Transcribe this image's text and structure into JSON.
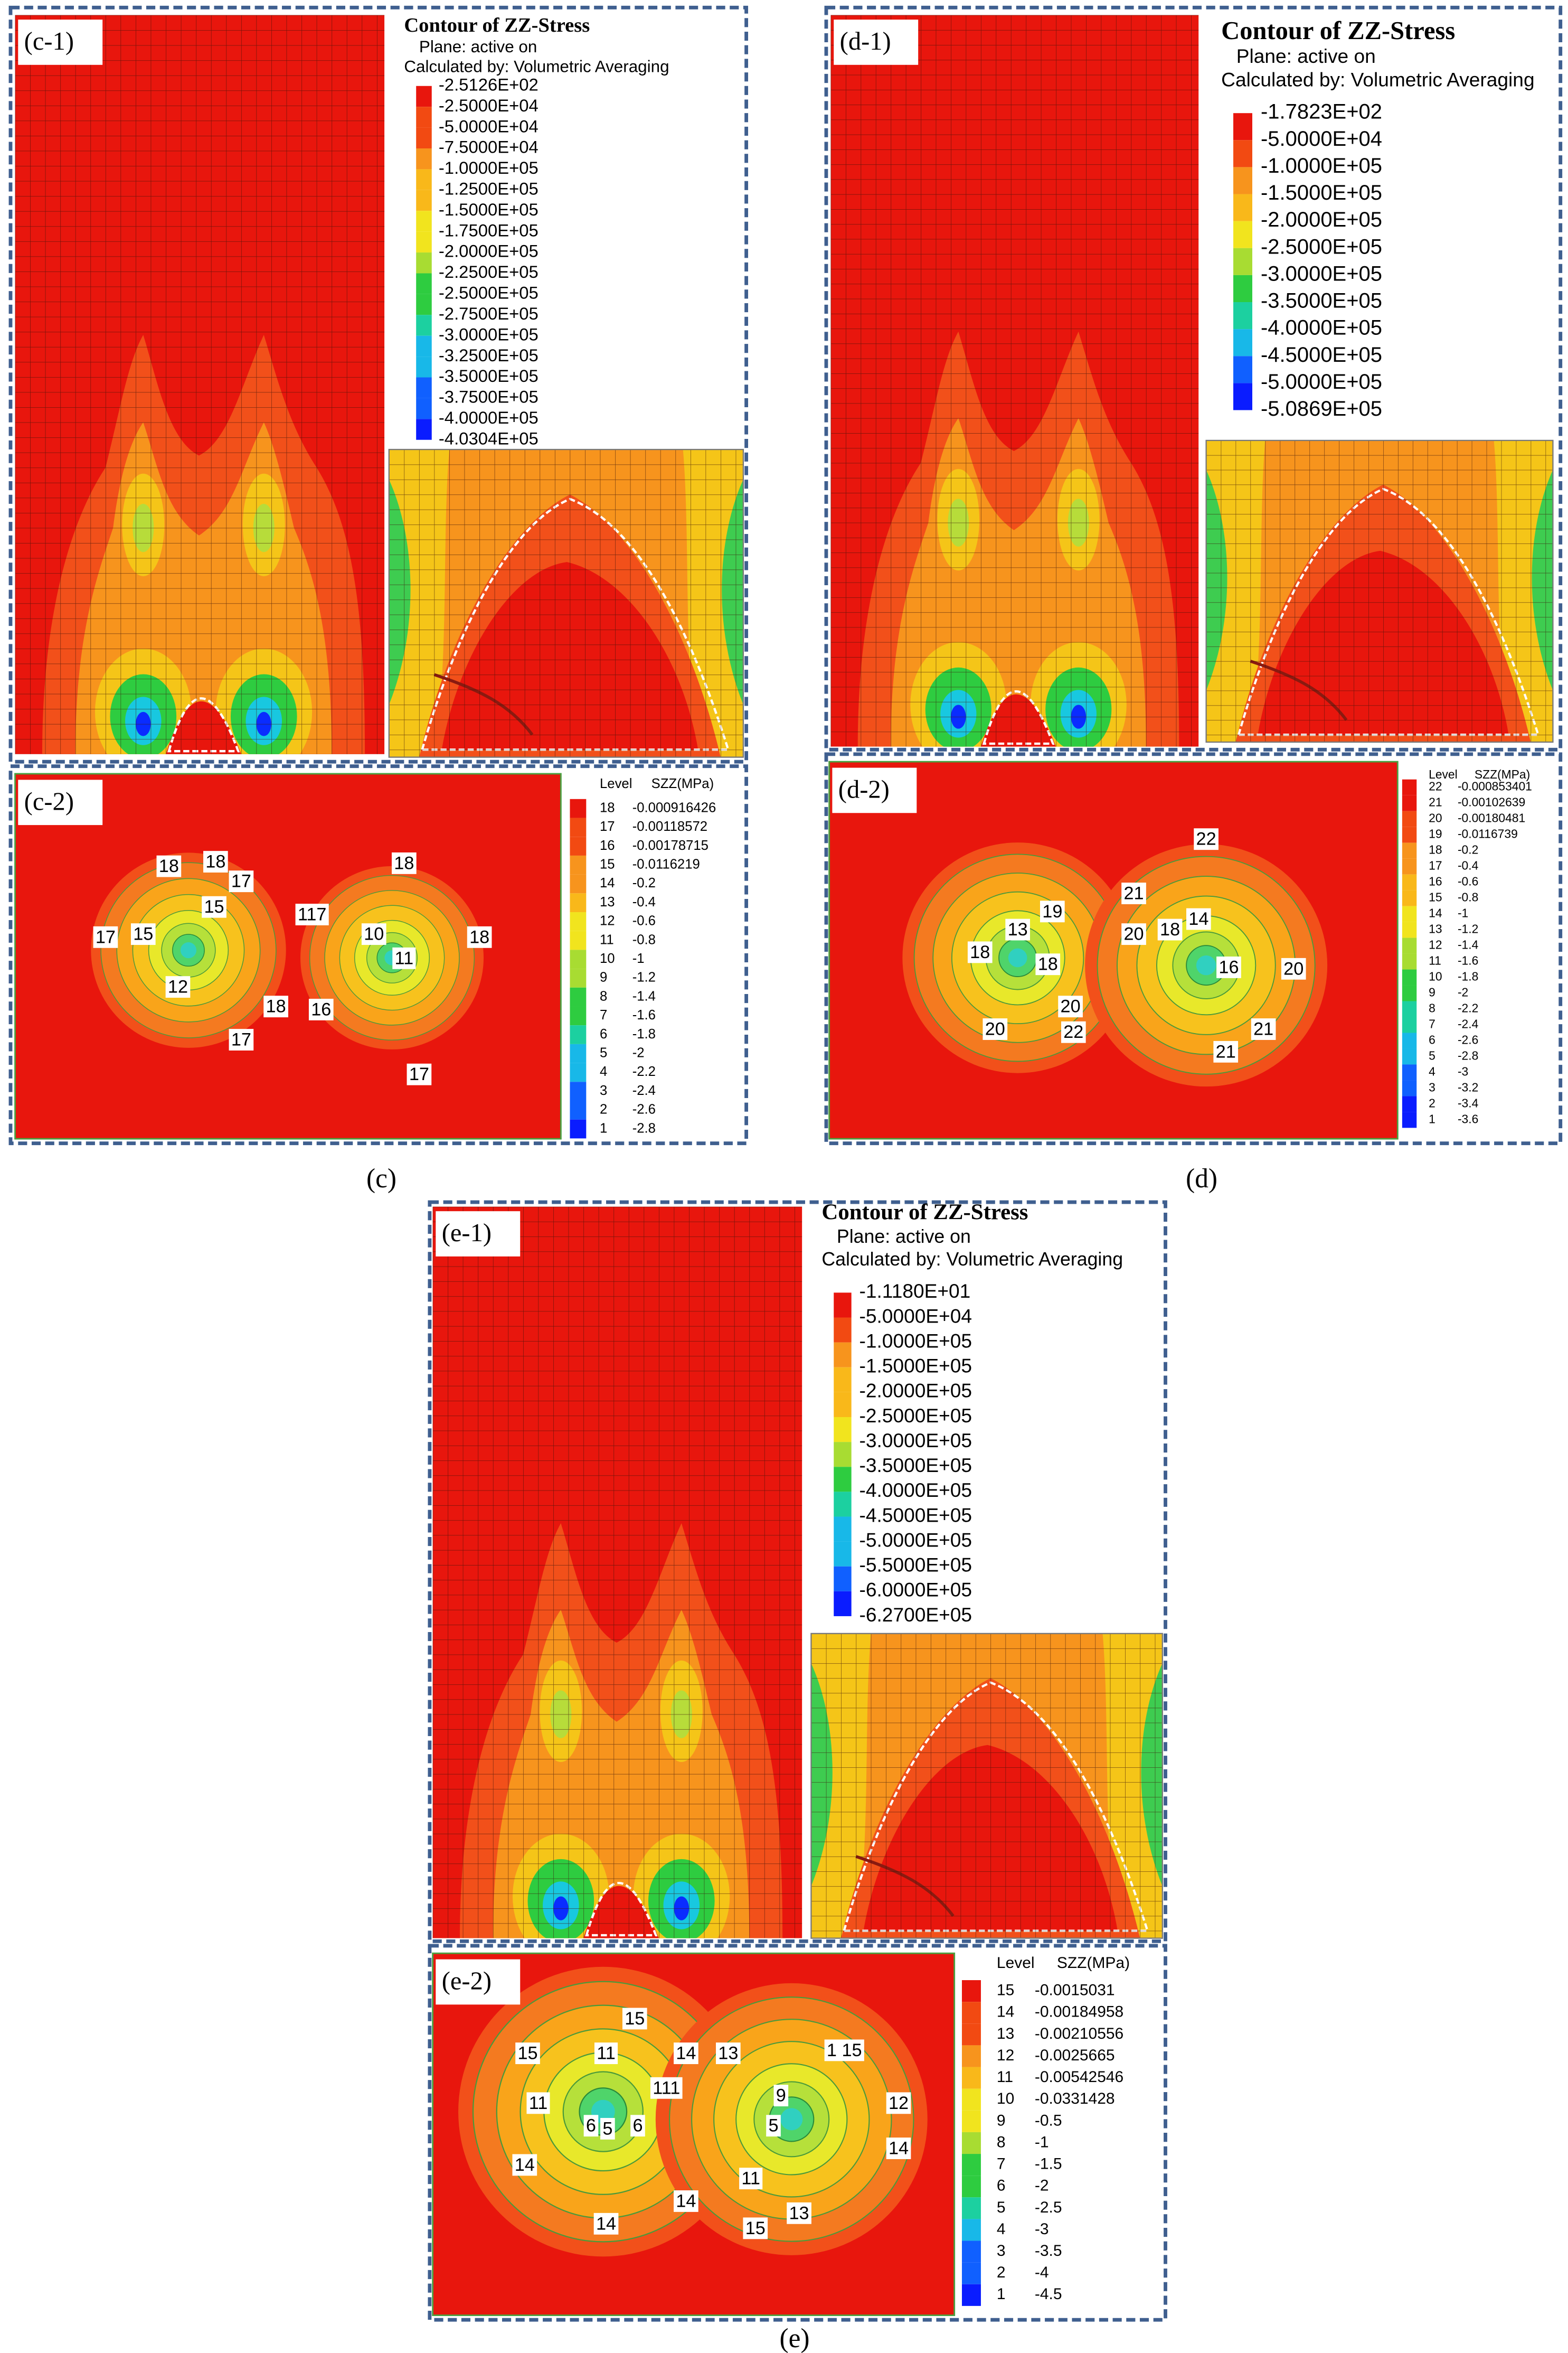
{
  "panels": [
    {
      "caption": "(c)",
      "main": {
        "label": "(c-1)",
        "title": "Contour of ZZ-Stress",
        "plane": "Plane: active on",
        "method": "Calculated by: Volumetric Averaging",
        "legend": [
          "-2.5126E+02",
          "-2.5000E+04",
          "-5.0000E+04",
          "-7.5000E+04",
          "-1.0000E+05",
          "-1.2500E+05",
          "-1.5000E+05",
          "-1.7500E+05",
          "-2.0000E+05",
          "-2.2500E+05",
          "-2.5000E+05",
          "-2.7500E+05",
          "-3.0000E+05",
          "-3.2500E+05",
          "-3.5000E+05",
          "-3.7500E+05",
          "-4.0000E+05",
          "-4.0304E+05"
        ]
      },
      "section": {
        "label": "(c-2)",
        "level_header": "Level",
        "value_header": "SZZ(MPa)",
        "levels": [
          18,
          17,
          16,
          15,
          14,
          13,
          12,
          11,
          10,
          9,
          8,
          7,
          6,
          5,
          4,
          3,
          2,
          1
        ],
        "values": [
          "-0.000916426",
          "-0.00118572",
          "-0.00178715",
          "-0.0116219",
          "-0.2",
          "-0.4",
          "-0.6",
          "-0.8",
          "-1",
          "-1.2",
          "-1.4",
          "-1.6",
          "-1.8",
          "-2",
          "-2.2",
          "-2.4",
          "-2.6",
          "-2.8"
        ],
        "contour_labels": [
          "18",
          "18",
          "17",
          "17",
          "15",
          "15",
          "12",
          "17",
          "18",
          "117",
          "10",
          "11",
          "18",
          "16",
          "17",
          "18"
        ]
      }
    },
    {
      "caption": "(d)",
      "main": {
        "label": "(d-1)",
        "title": "Contour of ZZ-Stress",
        "plane": "Plane: active on",
        "method": "Calculated by: Volumetric Averaging",
        "legend": [
          "-1.7823E+02",
          "-5.0000E+04",
          "-1.0000E+05",
          "-1.5000E+05",
          "-2.0000E+05",
          "-2.5000E+05",
          "-3.0000E+05",
          "-3.5000E+05",
          "-4.0000E+05",
          "-4.5000E+05",
          "-5.0000E+05",
          "-5.0869E+05"
        ]
      },
      "section": {
        "label": "(d-2)",
        "level_header": "Level",
        "value_header": "SZZ(MPa)",
        "levels": [
          22,
          21,
          20,
          19,
          18,
          17,
          16,
          15,
          14,
          13,
          12,
          11,
          10,
          9,
          8,
          7,
          6,
          5,
          4,
          3,
          2,
          1
        ],
        "values": [
          "-0.000853401",
          "-0.00102639",
          "-0.00180481",
          "-0.0116739",
          "-0.2",
          "-0.4",
          "-0.6",
          "-0.8",
          "-1",
          "-1.2",
          "-1.4",
          "-1.6",
          "-1.8",
          "-2",
          "-2.2",
          "-2.4",
          "-2.6",
          "-2.8",
          "-3",
          "-3.2",
          "-3.4",
          "-3.6"
        ],
        "contour_labels": [
          "22",
          "19",
          "21",
          "20",
          "18",
          "13",
          "18",
          "18",
          "14",
          "16",
          "20",
          "20",
          "22",
          "20",
          "21",
          "21"
        ]
      }
    },
    {
      "caption": "(e)",
      "main": {
        "label": "(e-1)",
        "title": "Contour of ZZ-Stress",
        "plane": "Plane: active on",
        "method": "Calculated by: Volumetric Averaging",
        "legend": [
          "-1.1180E+01",
          "-5.0000E+04",
          "-1.0000E+05",
          "-1.5000E+05",
          "-2.0000E+05",
          "-2.5000E+05",
          "-3.0000E+05",
          "-3.5000E+05",
          "-4.0000E+05",
          "-4.5000E+05",
          "-5.0000E+05",
          "-5.5000E+05",
          "-6.0000E+05",
          "-6.2700E+05"
        ]
      },
      "section": {
        "label": "(e-2)",
        "level_header": "Level",
        "value_header": "SZZ(MPa)",
        "levels": [
          15,
          14,
          13,
          12,
          11,
          10,
          9,
          8,
          7,
          6,
          5,
          4,
          3,
          2,
          1
        ],
        "values": [
          "-0.0015031",
          "-0.00184958",
          "-0.00210556",
          "-0.0025665",
          "-0.00542546",
          "-0.0331428",
          "-0.5",
          "-1",
          "-1.5",
          "-2",
          "-2.5",
          "-3",
          "-3.5",
          "-4",
          "-4.5"
        ],
        "contour_labels": [
          "15",
          "15",
          "11",
          "11",
          "14",
          "111",
          "6",
          "5",
          "6",
          "14",
          "14",
          "14",
          "13",
          "9",
          "5",
          "1 15",
          "12",
          "14",
          "11",
          "13",
          "15"
        ]
      }
    }
  ]
}
